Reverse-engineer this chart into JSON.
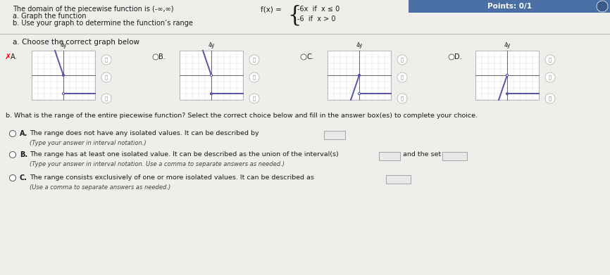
{
  "bg_color": "#f0eeeb",
  "header_bg": "#4a6fa5",
  "header_text": "Points: 0/1",
  "title_line1": "The domain of the piecewise function is (-∞,∞)",
  "title_line2": "a. Graph the function",
  "title_line3": "b. Use your graph to determine the function’s range",
  "fx_label": "f(x) =",
  "fx_line1": "-6x  if  x ≤ 0",
  "fx_line2": "-6  if  x > 0",
  "section_a": "a. Choose the correct graph below",
  "graph_labels": [
    "A.",
    "B.",
    "C.",
    "D."
  ],
  "selected_A": true,
  "section_b_text": "b. What is the range of the entire piecewise function? Select the correct choice below and fill in the answer box(es) to complete your choice.",
  "optA_text1": "The range does not have any isolated values. It can be described by",
  "optA_text2": "(Type your answer in interval notation.)",
  "optB_text1": "The range has at least one isolated value. It can be described as the union of the interval(s)",
  "optB_text2": "and the set",
  "optB_text3": "(Type your answer in interval notation. Use a comma to separate answers as needed.)",
  "optC_text1": "The range consists exclusively of one or more isolated values. It can be described as",
  "optC_text2": "(Use a comma to separate answers as needed.)",
  "graph_line_color": "#5555aa",
  "text_color": "#1a1a1a",
  "light_text": "#444444",
  "graph_border": "#aaaaaa",
  "grid_color": "#dddddd",
  "axis_color": "#666666"
}
